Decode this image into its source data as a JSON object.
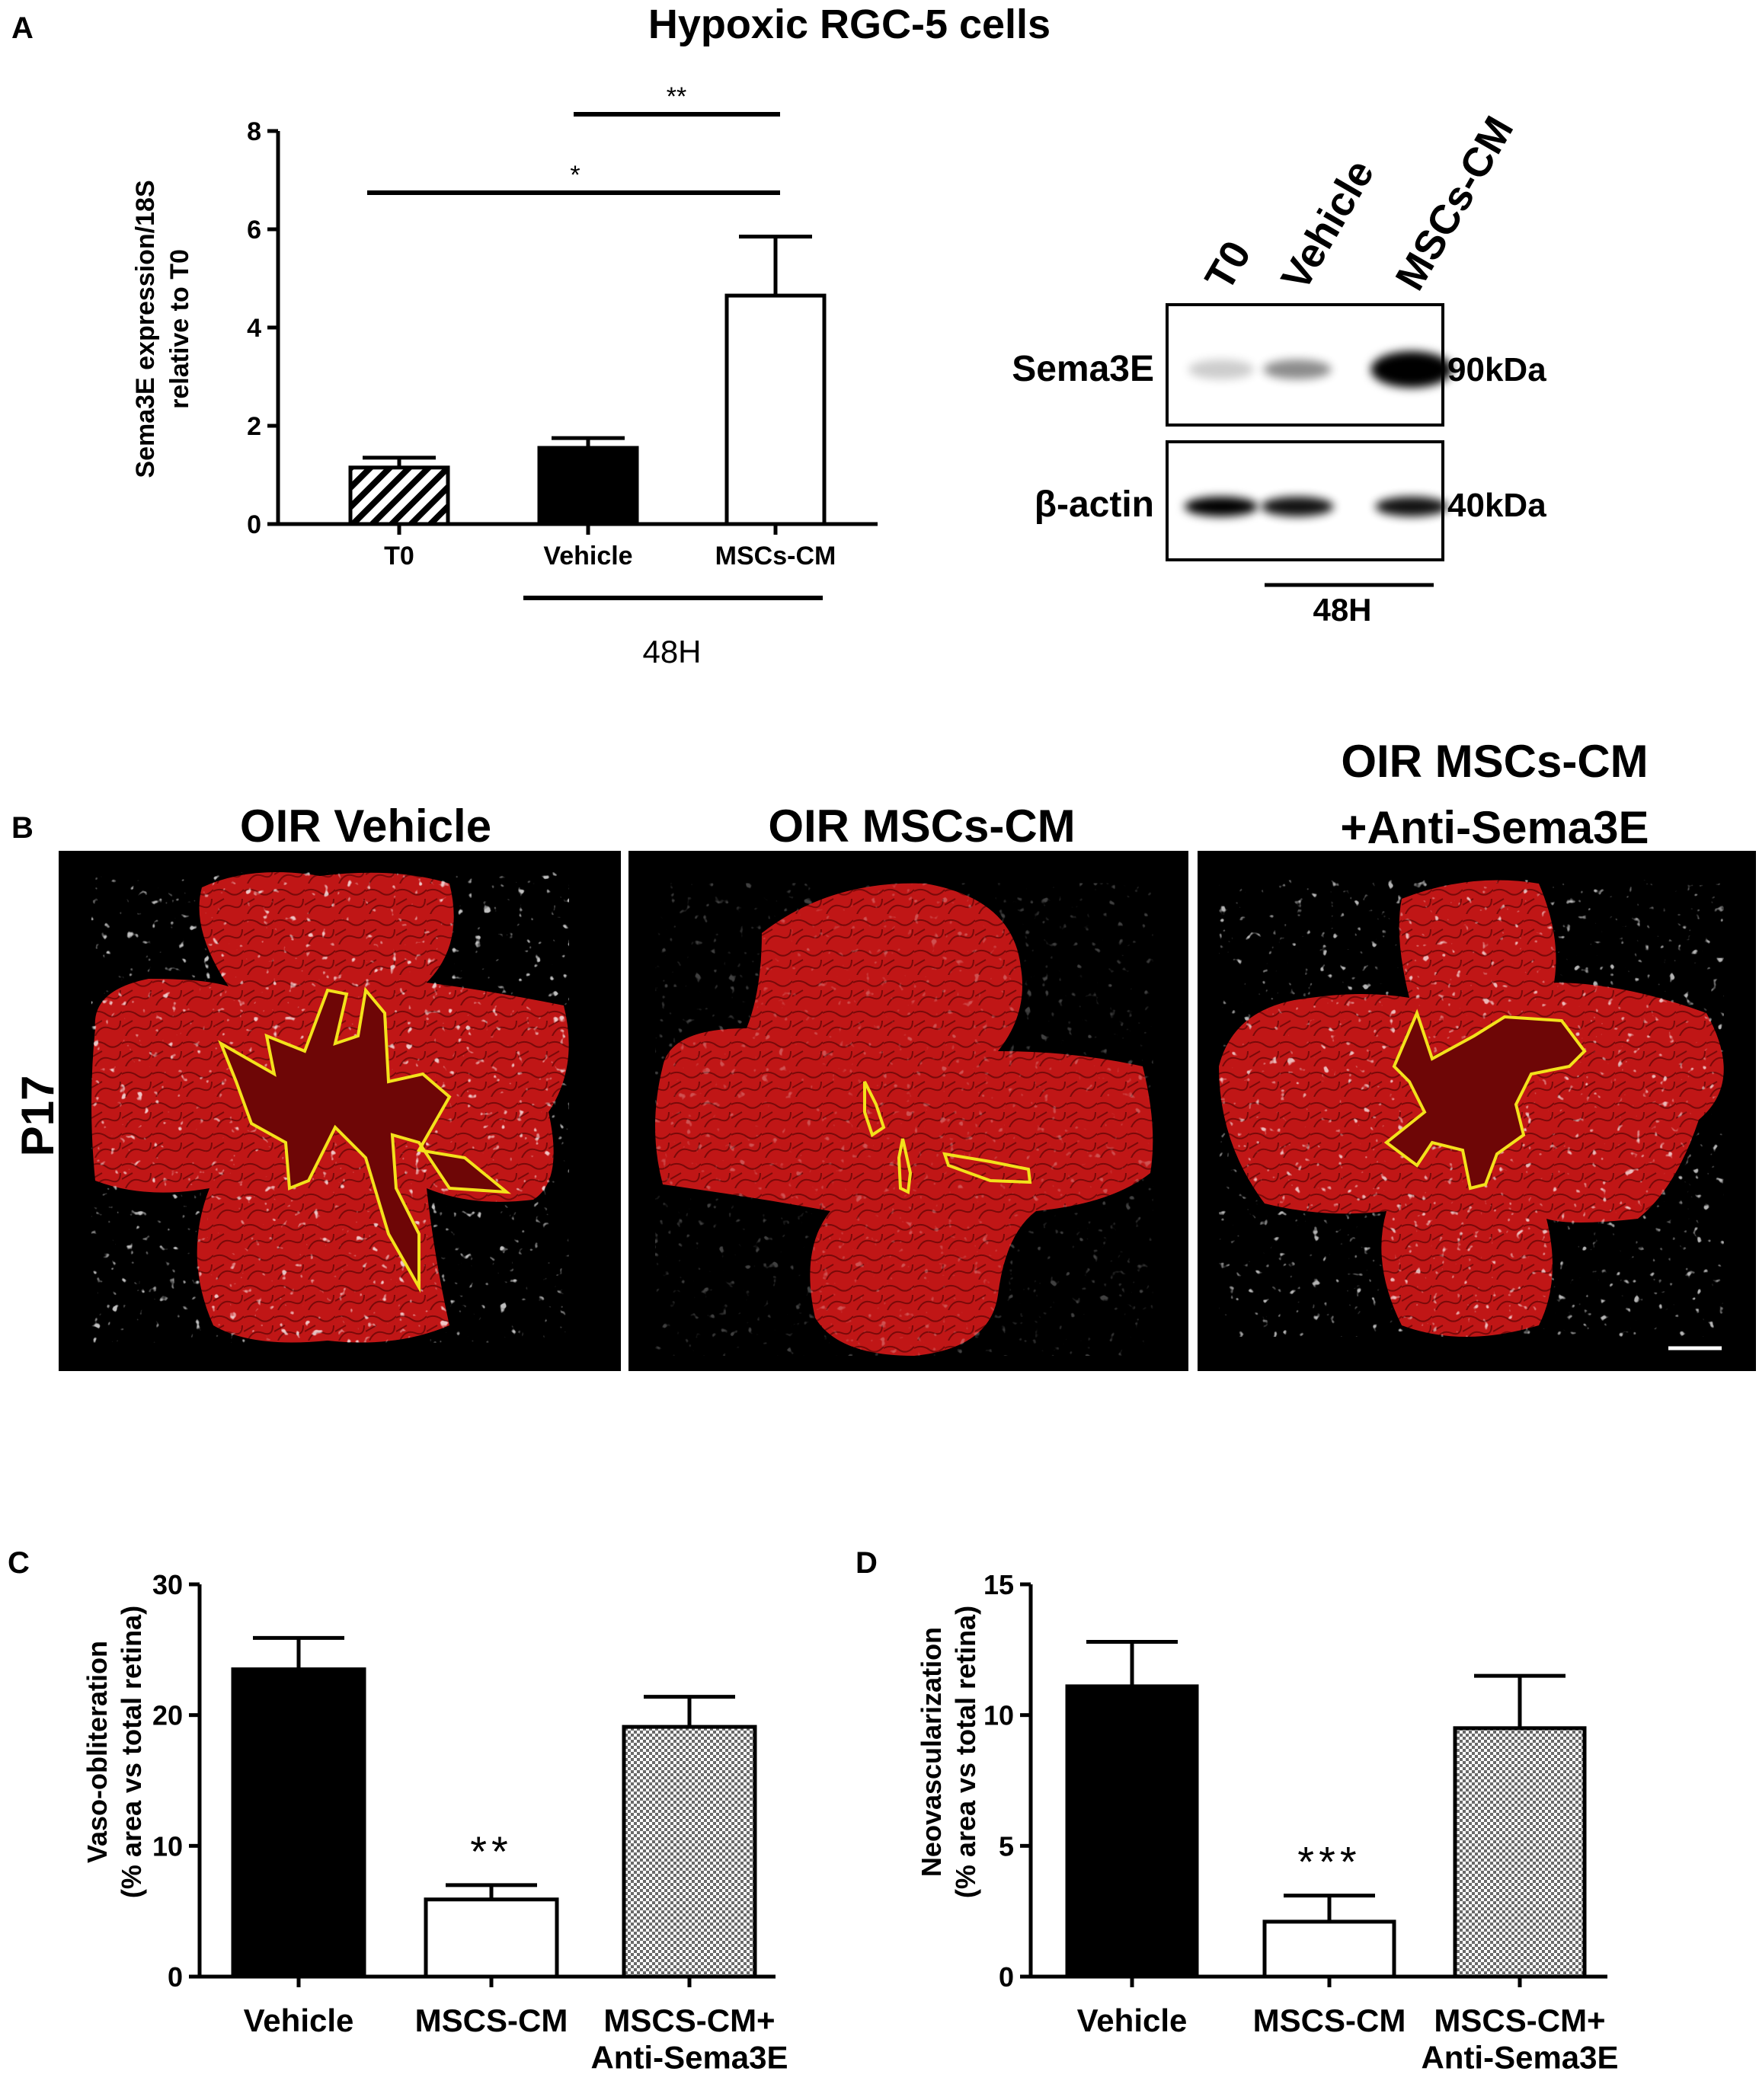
{
  "figure": {
    "panel_labels": [
      "A",
      "B",
      "C",
      "D"
    ],
    "colors": {
      "vehicle_bar": "#000000",
      "mscs_bar": "#ffffff",
      "hatch": "#000000",
      "yellow_outline": "#f3e21b",
      "retina_red": "#c21010",
      "background_black": "#000000"
    }
  },
  "chart_data": [
    {
      "type": "bar",
      "panel": "A",
      "title": "Hypoxic RGC-5 cells",
      "xlabel": "",
      "ylabel": [
        "Sema3E expression/18S",
        "relative to T0"
      ],
      "categories": [
        "T0",
        "Vehicle",
        "MSCs-CM"
      ],
      "values": [
        1.15,
        1.55,
        4.65
      ],
      "errors": [
        0.2,
        0.2,
        1.2
      ],
      "patterns": [
        "diagonal-hatch",
        "solid-black",
        "white"
      ],
      "ylim": [
        0,
        8
      ],
      "yticks": [
        "0",
        "2",
        "4",
        "6",
        "8"
      ],
      "group_label": "48H",
      "significance": [
        {
          "from": "Vehicle",
          "to": "MSCs-CM",
          "label": "**"
        },
        {
          "from": "T0",
          "to": "MSCs-CM",
          "label": "*"
        }
      ]
    },
    {
      "type": "bar",
      "panel": "C",
      "xlabel": "",
      "ylabel": [
        "Vaso-obliteration",
        "(% area vs total retina)"
      ],
      "categories": [
        "Vehicle",
        "MSCS-CM",
        "MSCS-CM+\nAnti-Sema3E"
      ],
      "values": [
        23.5,
        5.9,
        19.1
      ],
      "errors": [
        2.4,
        1.1,
        2.3
      ],
      "patterns": [
        "solid-black",
        "white",
        "checker"
      ],
      "ylim": [
        0,
        30
      ],
      "yticks": [
        "0",
        "10",
        "20",
        "30"
      ],
      "significance": [
        {
          "over": "MSCS-CM",
          "label": "**"
        }
      ]
    },
    {
      "type": "bar",
      "panel": "D",
      "xlabel": "",
      "ylabel": [
        "Neovascularization",
        "(% area vs total retina)"
      ],
      "categories": [
        "Vehicle",
        "MSCS-CM",
        "MSCS-CM+\nAnti-Sema3E"
      ],
      "values": [
        11.1,
        2.1,
        9.5
      ],
      "errors": [
        1.7,
        1.0,
        2.0
      ],
      "patterns": [
        "solid-black",
        "white",
        "checker"
      ],
      "ylim": [
        0,
        15
      ],
      "yticks": [
        "0",
        "5",
        "10",
        "15"
      ],
      "significance": [
        {
          "over": "MSCS-CM",
          "label": "***"
        }
      ]
    }
  ],
  "western_blot": {
    "lanes": [
      "T0",
      "Vehicle",
      "MSCs-CM"
    ],
    "rows": [
      {
        "name": "Sema3E",
        "size": "90kDa",
        "band_intensity": [
          0.08,
          0.35,
          1.0
        ]
      },
      {
        "name": "β-actin",
        "size": "40kDa",
        "band_intensity": [
          0.95,
          0.85,
          0.85
        ]
      }
    ],
    "group_label": "48H"
  },
  "retina_panels": {
    "row_label": "P17",
    "images": [
      {
        "title_lines": [
          "OIR Vehicle"
        ]
      },
      {
        "title_lines": [
          "OIR MSCs-CM"
        ]
      },
      {
        "title_lines": [
          "OIR MSCs-CM",
          "+Anti-Sema3E"
        ]
      }
    ]
  }
}
